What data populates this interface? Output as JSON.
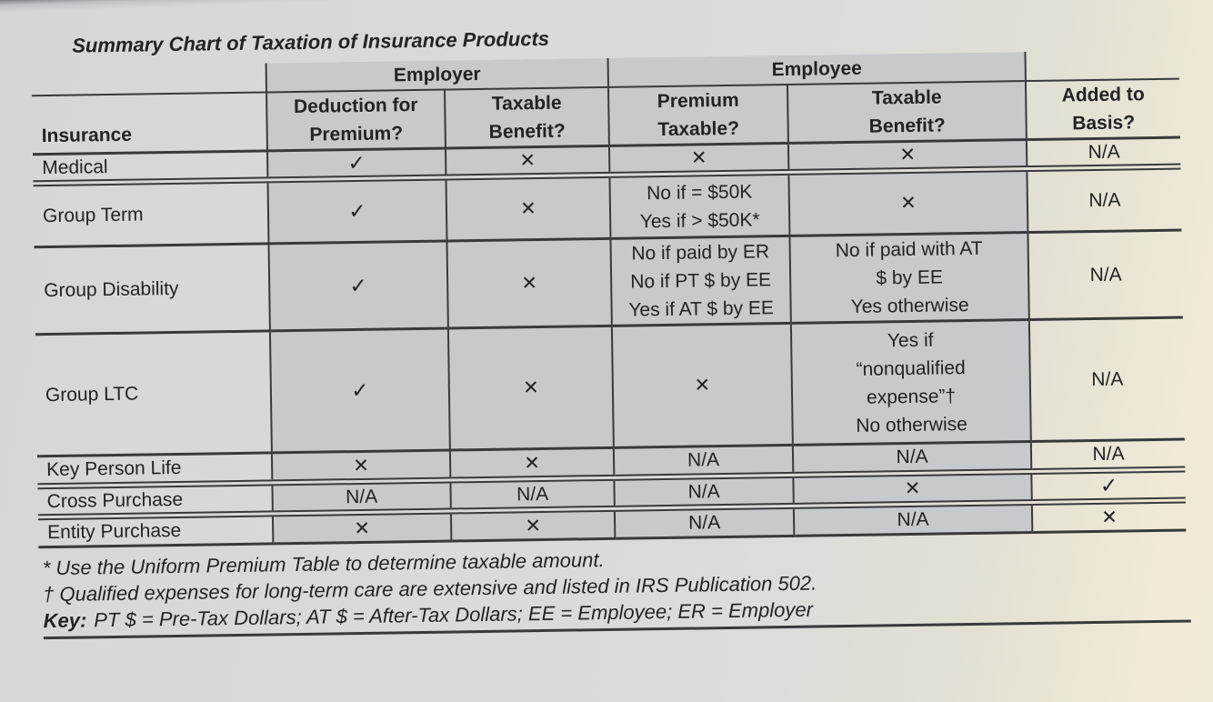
{
  "document": {
    "title": "Summary Chart of Taxation of Insurance Products"
  },
  "table": {
    "insurance_header": "Insurance",
    "groups": [
      {
        "label": "Employer",
        "columns": [
          [
            "Deduction for",
            "Premium?"
          ],
          [
            "Taxable",
            "Benefit?"
          ]
        ]
      },
      {
        "label": "Employee",
        "columns": [
          [
            "Premium",
            "Taxable?"
          ],
          [
            "Taxable",
            "Benefit?"
          ]
        ]
      }
    ],
    "added_to_basis": [
      "Added to",
      "Basis?"
    ],
    "rows": [
      {
        "insurance": "Medical",
        "cells": [
          "✓",
          "✕",
          "✕",
          "✕",
          "N/A"
        ]
      },
      {
        "insurance": "Group Term",
        "cells": [
          "✓",
          "✕",
          [
            "No if = $50K",
            "Yes if > $50K*"
          ],
          "✕",
          "N/A"
        ]
      },
      {
        "insurance": "Group Disability",
        "cells": [
          "✓",
          "✕",
          [
            "No if paid by ER",
            "No if PT $ by EE",
            "Yes if AT $ by EE"
          ],
          [
            "No if paid with AT",
            "$ by EE",
            "Yes otherwise"
          ],
          "N/A"
        ]
      },
      {
        "insurance": "Group LTC",
        "cells": [
          "✓",
          "✕",
          "✕",
          [
            "Yes if",
            "“nonqualified",
            "expense”†",
            "No otherwise"
          ],
          "N/A"
        ]
      },
      {
        "insurance": "Key Person Life",
        "cells": [
          "✕",
          "✕",
          "N/A",
          "N/A",
          "N/A"
        ]
      },
      {
        "insurance": "Cross Purchase",
        "cells": [
          "N/A",
          "N/A",
          "N/A",
          "✕",
          "✓"
        ]
      },
      {
        "insurance": "Entity Purchase",
        "cells": [
          "✕",
          "✕",
          "N/A",
          "N/A",
          "✕"
        ]
      }
    ],
    "symbols": {
      "check": "✓",
      "cross": "✕",
      "not_applicable": "N/A"
    }
  },
  "notes": {
    "footnotes": [
      "* Use the Uniform Premium Table to determine taxable amount.",
      "† Qualified expenses for long-term care are extensive and listed in IRS Publication 502."
    ],
    "key": {
      "label": "Key:",
      "text": "PT $ = Pre-Tax Dollars; AT $ = After-Tax Dollars; EE = Employee; ER = Employer"
    }
  },
  "colors": {
    "paper": "#d8dade",
    "paper_warm": "#eee8d5",
    "cell_shade": "#c7c9cc",
    "line": "#39393c",
    "text": "#232327"
  }
}
